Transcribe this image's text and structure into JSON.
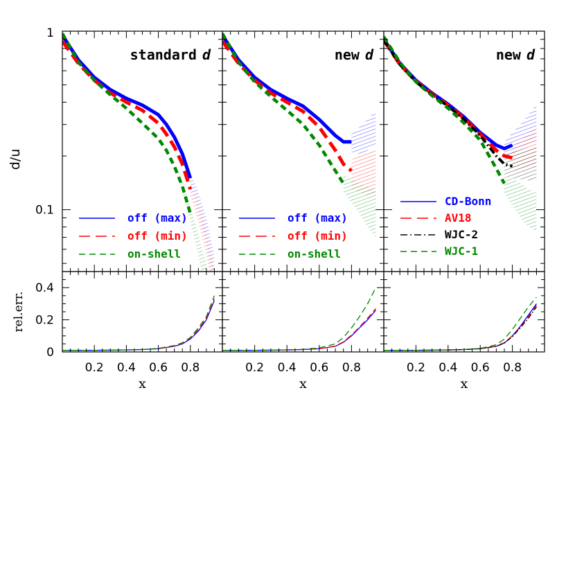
{
  "chart_data": [
    {
      "type": "line",
      "panel": "upper",
      "label": "standard",
      "label_var": "d",
      "ylabel": "d/u",
      "yscale": "log",
      "ylim": [
        0.045,
        1.0
      ],
      "xlim": [
        0.0,
        1.0
      ],
      "y_ticks": [
        "1",
        "0.1"
      ],
      "legend_position": "bottom-left",
      "series": [
        {
          "name": "off (max)",
          "color": "#0000ff",
          "dash": "solid",
          "x": [
            0.0,
            0.1,
            0.2,
            0.3,
            0.4,
            0.5,
            0.6,
            0.65,
            0.7,
            0.75,
            0.8
          ],
          "y": [
            0.95,
            0.69,
            0.55,
            0.47,
            0.42,
            0.385,
            0.34,
            0.3,
            0.255,
            0.205,
            0.15
          ],
          "band_x": [
            0.8,
            0.85,
            0.9,
            0.95
          ],
          "band_lo": [
            0.14,
            0.1,
            0.065,
            0.035
          ],
          "band_hi": [
            0.16,
            0.125,
            0.09,
            0.055
          ]
        },
        {
          "name": "off (min)",
          "color": "#ff0000",
          "dash": "long-dash",
          "x": [
            0.0,
            0.1,
            0.2,
            0.3,
            0.4,
            0.5,
            0.6,
            0.65,
            0.7,
            0.75,
            0.8
          ],
          "y": [
            0.88,
            0.66,
            0.53,
            0.45,
            0.4,
            0.36,
            0.305,
            0.265,
            0.225,
            0.18,
            0.13
          ],
          "band_x": [
            0.8,
            0.85,
            0.9,
            0.95
          ],
          "band_lo": [
            0.12,
            0.085,
            0.055,
            0.03
          ],
          "band_hi": [
            0.14,
            0.11,
            0.075,
            0.045
          ]
        },
        {
          "name": "on-shell",
          "color": "#008800",
          "dash": "short-dash",
          "x": [
            0.0,
            0.1,
            0.2,
            0.3,
            0.4,
            0.5,
            0.6,
            0.65,
            0.7,
            0.75,
            0.8
          ],
          "y": [
            0.97,
            0.67,
            0.53,
            0.44,
            0.37,
            0.305,
            0.25,
            0.215,
            0.175,
            0.135,
            0.095
          ],
          "band_x": [
            0.75,
            0.8,
            0.85,
            0.9
          ],
          "band_lo": [
            0.125,
            0.085,
            0.055,
            0.035
          ],
          "band_hi": [
            0.145,
            0.105,
            0.072,
            0.05
          ]
        }
      ]
    },
    {
      "type": "line",
      "panel": "upper",
      "label": "new",
      "label_var": "d",
      "yscale": "log",
      "ylim": [
        0.045,
        1.0
      ],
      "xlim": [
        0.0,
        1.0
      ],
      "legend_position": "bottom-left",
      "series": [
        {
          "name": "off (max)",
          "color": "#0000ff",
          "dash": "solid",
          "x": [
            0.0,
            0.1,
            0.2,
            0.3,
            0.4,
            0.5,
            0.6,
            0.7,
            0.75,
            0.8
          ],
          "y": [
            0.95,
            0.69,
            0.55,
            0.47,
            0.42,
            0.38,
            0.32,
            0.26,
            0.24,
            0.24
          ],
          "band_x": [
            0.8,
            0.85,
            0.9,
            0.95
          ],
          "band_lo": [
            0.21,
            0.205,
            0.215,
            0.23
          ],
          "band_hi": [
            0.27,
            0.29,
            0.32,
            0.36
          ]
        },
        {
          "name": "off (min)",
          "color": "#ff0000",
          "dash": "long-dash",
          "x": [
            0.0,
            0.1,
            0.2,
            0.3,
            0.4,
            0.5,
            0.6,
            0.7,
            0.75,
            0.8
          ],
          "y": [
            0.88,
            0.66,
            0.53,
            0.45,
            0.4,
            0.355,
            0.29,
            0.215,
            0.18,
            0.165
          ],
          "band_x": [
            0.8,
            0.85,
            0.9,
            0.95
          ],
          "band_lo": [
            0.13,
            0.125,
            0.12,
            0.12
          ],
          "band_hi": [
            0.19,
            0.2,
            0.21,
            0.22
          ]
        },
        {
          "name": "on-shell",
          "color": "#008800",
          "dash": "short-dash",
          "x": [
            0.0,
            0.1,
            0.2,
            0.3,
            0.4,
            0.5,
            0.6,
            0.7,
            0.75
          ],
          "y": [
            0.97,
            0.67,
            0.52,
            0.43,
            0.36,
            0.3,
            0.23,
            0.165,
            0.14
          ],
          "band_x": [
            0.75,
            0.8,
            0.85,
            0.9,
            0.95
          ],
          "band_lo": [
            0.125,
            0.11,
            0.095,
            0.08,
            0.07
          ],
          "band_hi": [
            0.155,
            0.15,
            0.14,
            0.135,
            0.13
          ]
        }
      ]
    },
    {
      "type": "line",
      "panel": "upper",
      "label": "new",
      "label_var": "d",
      "yscale": "log",
      "ylim": [
        0.045,
        1.0
      ],
      "xlim": [
        0.0,
        1.0
      ],
      "legend_position": "bottom-left",
      "series": [
        {
          "name": "CD-Bonn",
          "color": "#0000ff",
          "dash": "solid",
          "x": [
            0.0,
            0.1,
            0.2,
            0.3,
            0.4,
            0.5,
            0.6,
            0.7,
            0.75,
            0.8
          ],
          "y": [
            0.9,
            0.66,
            0.53,
            0.45,
            0.39,
            0.33,
            0.27,
            0.23,
            0.22,
            0.23
          ],
          "band_x": [
            0.75,
            0.8,
            0.85,
            0.9,
            0.95
          ],
          "band_lo": [
            0.2,
            0.205,
            0.215,
            0.225,
            0.24
          ],
          "band_hi": [
            0.24,
            0.27,
            0.3,
            0.34,
            0.39
          ]
        },
        {
          "name": "AV18",
          "color": "#ff0000",
          "dash": "long-dash",
          "x": [
            0.0,
            0.1,
            0.2,
            0.3,
            0.4,
            0.5,
            0.6,
            0.7,
            0.75,
            0.8
          ],
          "y": [
            0.89,
            0.65,
            0.525,
            0.445,
            0.385,
            0.325,
            0.265,
            0.215,
            0.2,
            0.195
          ],
          "band_x": [
            0.8,
            0.85,
            0.9,
            0.95
          ],
          "band_lo": [
            0.165,
            0.17,
            0.17,
            0.175
          ],
          "band_hi": [
            0.225,
            0.245,
            0.27,
            0.29
          ]
        },
        {
          "name": "WJC-2",
          "color": "#000000",
          "dash": "dash-dot",
          "x": [
            0.0,
            0.1,
            0.2,
            0.3,
            0.4,
            0.5,
            0.6,
            0.7,
            0.75,
            0.8
          ],
          "y": [
            0.89,
            0.65,
            0.52,
            0.44,
            0.38,
            0.32,
            0.26,
            0.2,
            0.18,
            0.175
          ],
          "band_x": [
            0.75,
            0.8,
            0.85,
            0.9,
            0.95
          ],
          "band_lo": [
            0.155,
            0.15,
            0.148,
            0.146,
            0.145
          ],
          "band_hi": [
            0.205,
            0.21,
            0.215,
            0.22,
            0.225
          ]
        },
        {
          "name": "WJC-1",
          "color": "#008800",
          "dash": "short-dash",
          "x": [
            0.0,
            0.1,
            0.2,
            0.3,
            0.4,
            0.5,
            0.6,
            0.7,
            0.75
          ],
          "y": [
            0.93,
            0.67,
            0.52,
            0.435,
            0.37,
            0.305,
            0.245,
            0.17,
            0.14
          ],
          "band_x": [
            0.75,
            0.8,
            0.85,
            0.9,
            0.95
          ],
          "band_lo": [
            0.125,
            0.105,
            0.09,
            0.08,
            0.075
          ],
          "band_hi": [
            0.155,
            0.15,
            0.14,
            0.13,
            0.125
          ]
        }
      ]
    },
    {
      "type": "line",
      "panel": "lower",
      "ylabel": "rel.err.",
      "xlabel": "x",
      "xlim": [
        0.0,
        1.0
      ],
      "ylim": [
        0.0,
        0.5
      ],
      "x_ticks": [
        "0.2",
        "0.4",
        "0.6",
        "0.8"
      ],
      "y_ticks": [
        "0.4",
        "0.2",
        "0"
      ],
      "series": [
        {
          "name": "off (max)",
          "color": "#0000ff",
          "dash": "solid",
          "x": [
            0.0,
            0.2,
            0.4,
            0.5,
            0.6,
            0.7,
            0.75,
            0.8,
            0.85,
            0.9,
            0.95
          ],
          "y": [
            0.01,
            0.01,
            0.012,
            0.015,
            0.02,
            0.035,
            0.05,
            0.08,
            0.13,
            0.2,
            0.32
          ]
        },
        {
          "name": "off (min)",
          "color": "#ff0000",
          "dash": "long-dash",
          "x": [
            0.0,
            0.2,
            0.4,
            0.5,
            0.6,
            0.7,
            0.75,
            0.8,
            0.85,
            0.9,
            0.95
          ],
          "y": [
            0.01,
            0.01,
            0.012,
            0.015,
            0.02,
            0.037,
            0.053,
            0.085,
            0.14,
            0.21,
            0.33
          ]
        },
        {
          "name": "on-shell",
          "color": "#008800",
          "dash": "short-dash",
          "x": [
            0.0,
            0.2,
            0.4,
            0.5,
            0.6,
            0.7,
            0.75,
            0.8,
            0.85,
            0.9,
            0.95
          ],
          "y": [
            0.01,
            0.01,
            0.012,
            0.016,
            0.022,
            0.04,
            0.057,
            0.09,
            0.15,
            0.22,
            0.35
          ]
        }
      ]
    },
    {
      "type": "line",
      "panel": "lower",
      "xlabel": "x",
      "xlim": [
        0.0,
        1.0
      ],
      "ylim": [
        0.0,
        0.5
      ],
      "x_ticks": [
        "0.2",
        "0.4",
        "0.6",
        "0.8"
      ],
      "series": [
        {
          "name": "off (max)",
          "color": "#0000ff",
          "dash": "solid",
          "x": [
            0.0,
            0.2,
            0.4,
            0.5,
            0.6,
            0.7,
            0.75,
            0.8,
            0.85,
            0.9,
            0.95
          ],
          "y": [
            0.01,
            0.01,
            0.012,
            0.015,
            0.02,
            0.035,
            0.06,
            0.1,
            0.15,
            0.2,
            0.26
          ]
        },
        {
          "name": "off (min)",
          "color": "#ff0000",
          "dash": "long-dash",
          "x": [
            0.0,
            0.2,
            0.4,
            0.5,
            0.6,
            0.7,
            0.75,
            0.8,
            0.85,
            0.9,
            0.95
          ],
          "y": [
            0.01,
            0.01,
            0.012,
            0.015,
            0.02,
            0.037,
            0.063,
            0.105,
            0.155,
            0.21,
            0.27
          ]
        },
        {
          "name": "on-shell",
          "color": "#008800",
          "dash": "short-dash",
          "x": [
            0.0,
            0.2,
            0.4,
            0.5,
            0.6,
            0.7,
            0.75,
            0.8,
            0.85,
            0.9,
            0.95
          ],
          "y": [
            0.01,
            0.01,
            0.013,
            0.017,
            0.025,
            0.05,
            0.09,
            0.15,
            0.22,
            0.3,
            0.4
          ]
        }
      ]
    },
    {
      "type": "line",
      "panel": "lower",
      "xlabel": "x",
      "xlim": [
        0.0,
        1.0
      ],
      "ylim": [
        0.0,
        0.5
      ],
      "x_ticks": [
        "0.2",
        "0.4",
        "0.6",
        "0.8"
      ],
      "series": [
        {
          "name": "CD-Bonn",
          "color": "#0000ff",
          "dash": "solid",
          "x": [
            0.0,
            0.2,
            0.4,
            0.5,
            0.6,
            0.7,
            0.75,
            0.8,
            0.85,
            0.9,
            0.95
          ],
          "y": [
            0.01,
            0.01,
            0.012,
            0.015,
            0.02,
            0.035,
            0.055,
            0.1,
            0.16,
            0.23,
            0.3
          ]
        },
        {
          "name": "AV18",
          "color": "#ff0000",
          "dash": "long-dash",
          "x": [
            0.0,
            0.2,
            0.4,
            0.5,
            0.6,
            0.7,
            0.75,
            0.8,
            0.85,
            0.9,
            0.95
          ],
          "y": [
            0.01,
            0.01,
            0.012,
            0.015,
            0.02,
            0.036,
            0.058,
            0.1,
            0.155,
            0.22,
            0.29
          ]
        },
        {
          "name": "WJC-2",
          "color": "#000000",
          "dash": "dash-dot",
          "x": [
            0.0,
            0.2,
            0.4,
            0.5,
            0.6,
            0.7,
            0.75,
            0.8,
            0.85,
            0.9,
            0.95
          ],
          "y": [
            0.01,
            0.01,
            0.012,
            0.015,
            0.02,
            0.035,
            0.055,
            0.095,
            0.15,
            0.21,
            0.28
          ]
        },
        {
          "name": "WJC-1",
          "color": "#008800",
          "dash": "short-dash",
          "x": [
            0.0,
            0.2,
            0.4,
            0.5,
            0.6,
            0.7,
            0.75,
            0.8,
            0.85,
            0.9,
            0.95
          ],
          "y": [
            0.01,
            0.01,
            0.013,
            0.016,
            0.022,
            0.045,
            0.08,
            0.14,
            0.21,
            0.28,
            0.34
          ]
        }
      ]
    }
  ]
}
